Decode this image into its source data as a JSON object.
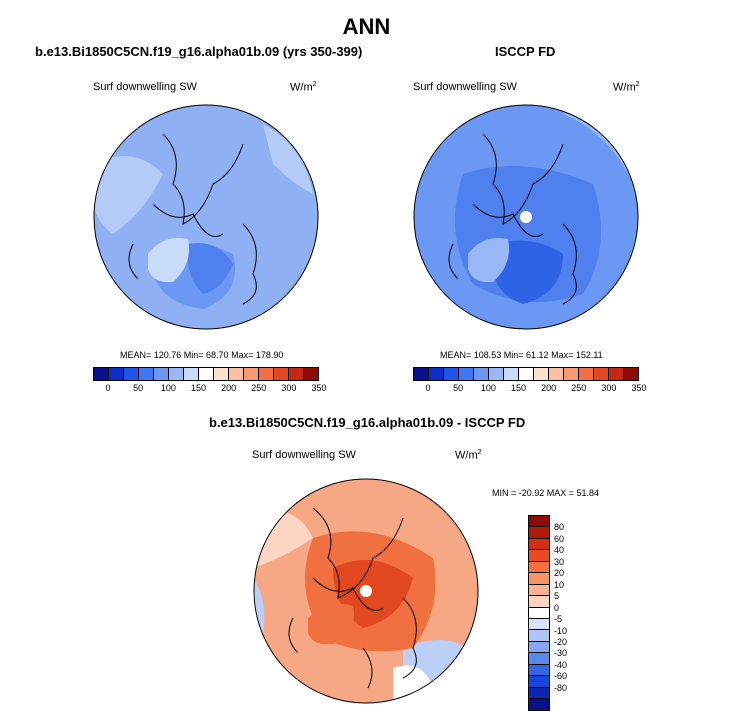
{
  "main_title": "ANN",
  "panels": {
    "model": {
      "title": "b.e13.Bi1850C5CN.f19_g16.alpha01b.09 (yrs 350-399)",
      "variable": "Surf downwelling SW",
      "units_base": "W/m",
      "units_exp": "2",
      "stats": "MEAN= 120.76  Min=  68.70  Max= 178.90"
    },
    "obs": {
      "title": "ISCCP FD",
      "variable": "Surf downwelling SW",
      "units_base": "W/m",
      "units_exp": "2",
      "stats": "MEAN= 108.53  Min=  61.12  Max= 152.11"
    },
    "diff": {
      "title": "b.e13.Bi1850C5CN.f19_g16.alpha01b.09 - ISCCP FD",
      "variable": "Surf downwelling SW",
      "units_base": "W/m",
      "units_exp": "2",
      "stats": "MIN = -20.92 MAX =  51.84"
    }
  },
  "colorbar_abs": {
    "colors": [
      "#0a0f8a",
      "#0d2fc4",
      "#1f55e8",
      "#3e77f0",
      "#6b98f2",
      "#98b8f5",
      "#c9dbfa",
      "#ffffff",
      "#fde1cf",
      "#fcc0a2",
      "#f99a72",
      "#f26f45",
      "#e44724",
      "#c42810",
      "#8e0c06"
    ],
    "labels": [
      "0",
      "50",
      "100",
      "150",
      "200",
      "250",
      "300",
      "350"
    ]
  },
  "colorbar_diff": {
    "colors": [
      "#8e0c06",
      "#b01a0b",
      "#d22e12",
      "#ea4a22",
      "#f4703f",
      "#f89565",
      "#fbb48f",
      "#fdd5bf",
      "#ffffff",
      "#d6e2fb",
      "#aec6f6",
      "#86a8f1",
      "#5c88ee",
      "#3566e6",
      "#1b45d6",
      "#0d26b2",
      "#07108a"
    ],
    "labels": [
      "80",
      "60",
      "40",
      "30",
      "20",
      "10",
      "5",
      "0",
      "-5",
      "-10",
      "-20",
      "-30",
      "-40",
      "-60",
      "-80"
    ]
  },
  "map_colors": {
    "model_base": "#8fb0f3",
    "model_mid": "#6b98f2",
    "model_low": "#4f80ee",
    "model_light": "#b4cbf7",
    "obs_base": "#6b98f2",
    "obs_mid": "#4f80ee",
    "obs_low": "#2f62e4",
    "obs_light": "#98b8f5",
    "diff_base": "#f6a884",
    "diff_warm": "#f0703f",
    "diff_hot": "#e2481f",
    "diff_pale": "#fcd6c2",
    "diff_blue": "#bcd0f7",
    "diff_white": "#ffffff",
    "missing": "#ffffff"
  }
}
